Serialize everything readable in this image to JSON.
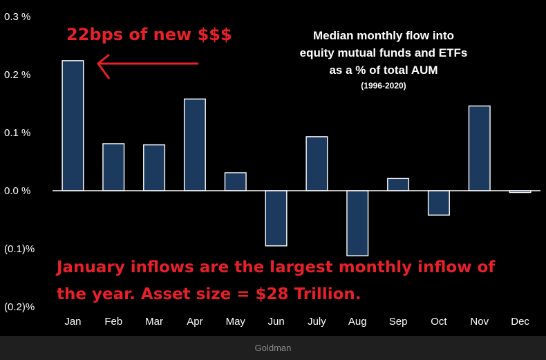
{
  "chart_data": {
    "type": "bar",
    "title_lines": [
      "Median monthly flow into",
      "equity mutual funds and ETFs",
      "as a % of total AUM"
    ],
    "subtitle": "(1996-2020)",
    "categories": [
      "Jan",
      "Feb",
      "Mar",
      "Apr",
      "May",
      "Jun",
      "July",
      "Aug",
      "Sep",
      "Oct",
      "Nov",
      "Dec"
    ],
    "values": [
      0.224,
      0.081,
      0.079,
      0.158,
      0.031,
      -0.095,
      0.093,
      -0.112,
      0.021,
      -0.042,
      0.146,
      -0.003
    ],
    "unit": "%",
    "ylim": [
      -0.2,
      0.3
    ],
    "yticks": [
      0.3,
      0.2,
      0.1,
      0.0,
      -0.1,
      -0.2
    ],
    "ytick_labels": [
      "0.3 %",
      "0.2 %",
      "0.1 %",
      "0.0 %",
      "(0.1)%",
      "(0.2)%"
    ],
    "colors": {
      "bar": "#1c3a5e",
      "bar_edge": "#ffffff",
      "annotation": "#e8202a"
    },
    "annotations": [
      {
        "text": "22bps of new $$$",
        "arrow": true
      },
      {
        "lines": [
          "January inflows are the largest monthly inflow of",
          "the year. Asset size = $28 Trillion."
        ]
      }
    ]
  },
  "footer": {
    "source": "Goldman"
  }
}
